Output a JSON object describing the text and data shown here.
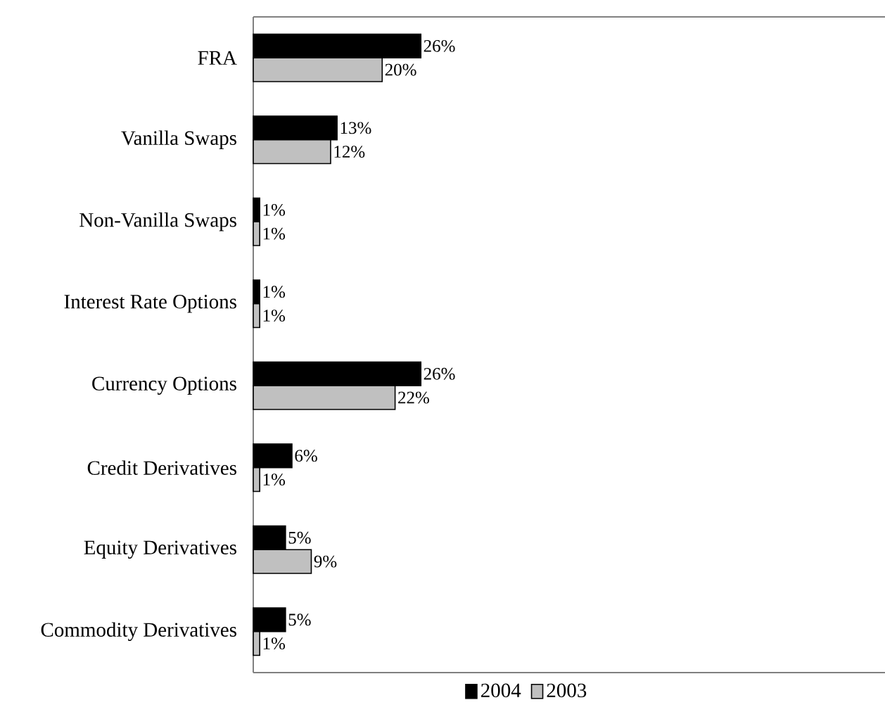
{
  "chart_data": {
    "type": "bar",
    "orientation": "horizontal",
    "categories": [
      "FRA",
      "Vanilla Swaps",
      "Non-Vanilla Swaps",
      "Interest Rate Options",
      "Currency Options",
      "Credit Derivatives",
      "Equity Derivatives",
      "Commodity Derivatives"
    ],
    "series": [
      {
        "name": "2004",
        "color": "#000000",
        "values": [
          26,
          13,
          1,
          1,
          26,
          6,
          5,
          5
        ],
        "value_labels": [
          "26%",
          "13%",
          "1%",
          "1%",
          "26%",
          "6%",
          "5%",
          "5%"
        ]
      },
      {
        "name": "2003",
        "color": "#c0c0c0",
        "values": [
          20,
          12,
          1,
          1,
          22,
          1,
          9,
          1
        ],
        "value_labels": [
          "20%",
          "12%",
          "1%",
          "1%",
          "22%",
          "1%",
          "9%",
          "1%"
        ]
      }
    ],
    "xlim": [
      0,
      98
    ],
    "legend": "bottom",
    "tick_labels": "y"
  }
}
